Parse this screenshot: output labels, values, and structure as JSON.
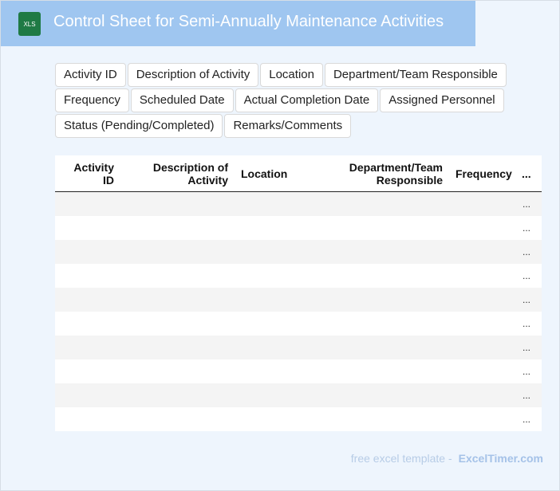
{
  "header": {
    "icon": "XLS",
    "title": "Control Sheet for Semi-Annually Maintenance Activities"
  },
  "tags": [
    "Activity ID",
    "Description of Activity",
    "Location",
    "Department/Team Responsible",
    "Frequency",
    "Scheduled Date",
    "Actual Completion Date",
    "Assigned Personnel",
    "Status (Pending/Completed)",
    "Remarks/Comments"
  ],
  "table": {
    "columns": [
      "Activity ID",
      "Description of Activity",
      "Location",
      "Department/Team Responsible",
      "Frequency",
      "..."
    ],
    "rows": [
      [
        "..."
      ],
      [
        "..."
      ],
      [
        "..."
      ],
      [
        "..."
      ],
      [
        "..."
      ],
      [
        "..."
      ],
      [
        "..."
      ],
      [
        "..."
      ],
      [
        "..."
      ],
      [
        "..."
      ]
    ]
  },
  "footer": {
    "text": "free excel template -",
    "brand": "ExcelTimer.com"
  }
}
